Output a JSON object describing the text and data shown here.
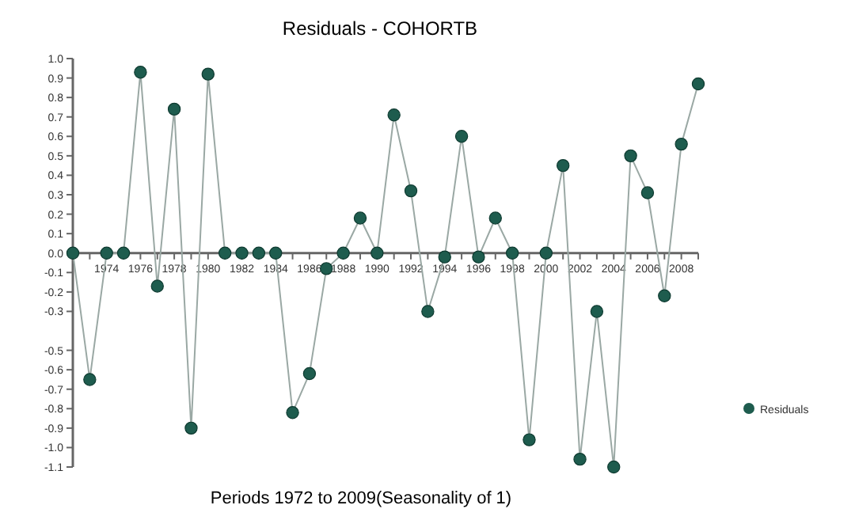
{
  "chart_data": {
    "type": "line",
    "title": "Residuals - COHORTB",
    "xlabel": "Periods 1972 to 2009(Seasonality of 1)",
    "x": [
      1972,
      1973,
      1974,
      1975,
      1976,
      1977,
      1978,
      1979,
      1980,
      1981,
      1982,
      1983,
      1984,
      1985,
      1986,
      1987,
      1988,
      1989,
      1990,
      1991,
      1992,
      1993,
      1994,
      1995,
      1996,
      1997,
      1998,
      1999,
      2000,
      2001,
      2002,
      2003,
      2004,
      2005,
      2006,
      2007,
      2008,
      2009
    ],
    "series": [
      {
        "name": "Residuals",
        "color": "#1e5c4e",
        "values": [
          0,
          -0.65,
          0,
          0,
          0.93,
          -0.17,
          0.74,
          -0.9,
          0.92,
          0,
          0,
          0,
          0,
          -0.82,
          -0.62,
          -0.08,
          0,
          0.18,
          0,
          0.71,
          0.32,
          -0.3,
          -0.02,
          0.6,
          -0.02,
          0.18,
          0,
          -0.96,
          0,
          0.45,
          -1.06,
          -0.3,
          -1.1,
          0.5,
          0.31,
          -0.22,
          0.56,
          0.87
        ]
      }
    ],
    "xlim": [
      1972,
      2009
    ],
    "xticks": [
      {
        "value": 1972,
        "label": null
      },
      {
        "value": 1973,
        "label": null
      },
      1974,
      {
        "value": 1975,
        "label": null
      },
      1976,
      {
        "value": 1977,
        "label": null
      },
      1978,
      {
        "value": 1979,
        "label": null
      },
      1980,
      {
        "value": 1981,
        "label": null
      },
      1982,
      {
        "value": 1983,
        "label": null
      },
      1984,
      {
        "value": 1985,
        "label": null
      },
      1986,
      {
        "value": 1987,
        "label": null
      },
      1988,
      {
        "value": 1989,
        "label": null
      },
      1990,
      {
        "value": 1991,
        "label": null
      },
      1992,
      {
        "value": 1993,
        "label": null
      },
      1994,
      {
        "value": 1995,
        "label": null
      },
      1996,
      {
        "value": 1997,
        "label": null
      },
      1998,
      {
        "value": 1999,
        "label": null
      },
      2000,
      {
        "value": 2001,
        "label": null
      },
      2002,
      {
        "value": 2003,
        "label": null
      },
      2004,
      {
        "value": 2005,
        "label": null
      },
      2006,
      {
        "value": 2007,
        "label": null
      },
      2008,
      {
        "value": 2009,
        "label": null
      }
    ],
    "ylim": [
      -1.1,
      1.0
    ],
    "yticks": [
      {
        "value": 1.0,
        "label": "1.0"
      },
      0.9,
      0.8,
      0.7,
      0.6,
      0.5,
      0.4,
      0.3,
      0.2,
      0.1,
      {
        "value": 0,
        "label": "0.0"
      },
      -0.1,
      -0.2,
      -0.3,
      -0.5,
      -0.6,
      -0.7,
      -0.8,
      -0.9,
      {
        "value": -1.0,
        "label": "-1.0"
      },
      -1.1
    ],
    "marker": "circle",
    "line_style": "solid",
    "grid": false,
    "legend": "right"
  }
}
